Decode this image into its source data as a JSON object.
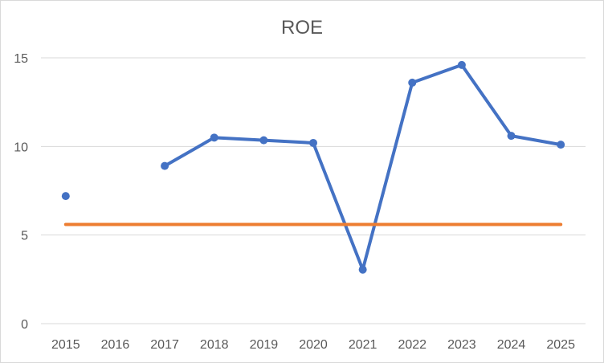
{
  "chart_data": {
    "type": "line",
    "title": "ROE",
    "xlabel": "",
    "ylabel": "",
    "categories": [
      "2015",
      "2016",
      "2017",
      "2018",
      "2019",
      "2020",
      "2021",
      "2022",
      "2023",
      "2024",
      "2025"
    ],
    "y_ticks": [
      "0",
      "5",
      "10",
      "15"
    ],
    "ylim": [
      0,
      15.5
    ],
    "grid": true,
    "legend": "none",
    "series": [
      {
        "values": [
          7.2,
          null,
          8.9,
          10.5,
          10.35,
          10.2,
          3.05,
          13.6,
          14.6,
          10.6,
          10.1
        ],
        "color": "#4472c4",
        "markers": true
      },
      {
        "values": [
          5.6,
          5.6,
          5.6,
          5.6,
          5.6,
          5.6,
          5.6,
          5.6,
          5.6,
          5.6,
          5.6
        ],
        "color": "#ed7d31",
        "markers": false
      }
    ]
  }
}
